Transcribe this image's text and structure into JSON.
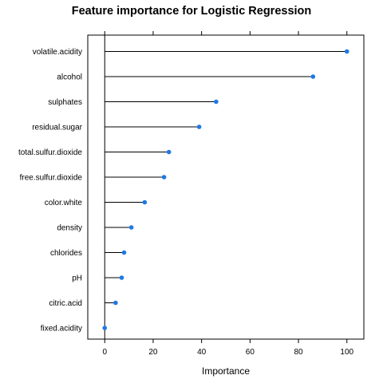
{
  "chart_data": {
    "type": "dotplot",
    "title": "Feature importance for Logistic Regression",
    "xlabel": "Importance",
    "ylabel": "",
    "xlim": [
      -7,
      107
    ],
    "xticks": [
      0,
      20,
      40,
      60,
      80,
      100
    ],
    "grid": false,
    "legend": "none",
    "point_color": "#1f78e6",
    "line_color": "#000000",
    "categories": [
      "volatile.acidity",
      "alcohol",
      "sulphates",
      "residual.sugar",
      "total.sulfur.dioxide",
      "free.sulfur.dioxide",
      "color.white",
      "density",
      "chlorides",
      "pH",
      "citric.acid",
      "fixed.acidity"
    ],
    "values": [
      100,
      86,
      46,
      39,
      26.5,
      24.5,
      16.5,
      11,
      8,
      7,
      4.5,
      0
    ]
  }
}
